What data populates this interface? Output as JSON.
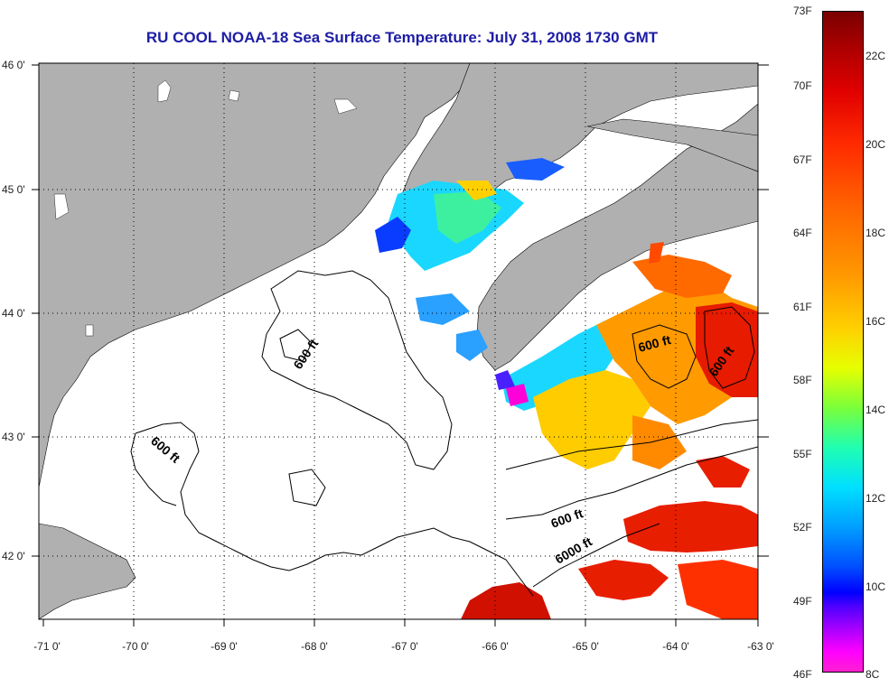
{
  "title": "RU COOL  NOAA-18  Sea Surface Temperature:  July 31, 2008 1730 GMT",
  "x_ticks": [
    "-71 0'",
    "-70 0'",
    "-69 0'",
    "-68 0'",
    "-67 0'",
    "-66 0'",
    "-65 0'",
    "-64 0'",
    "-63 0'"
  ],
  "y_ticks": [
    "46 0'",
    "45 0'",
    "44 0'",
    "43 0'",
    "42 0'"
  ],
  "contour_labels": [
    "600 ft",
    "600 ft",
    "600 ft",
    "600 ft",
    "600 ft",
    "6000 ft"
  ],
  "colorbar": {
    "fahrenheit": [
      "73F",
      "70F",
      "67F",
      "64F",
      "61F",
      "58F",
      "55F",
      "52F",
      "49F",
      "46F"
    ],
    "celsius": [
      "22C",
      "20C",
      "18C",
      "16C",
      "14C",
      "12C",
      "10C",
      "8C"
    ]
  },
  "colors": {
    "land": "#b0b0b0",
    "title": "#1d1da6"
  }
}
